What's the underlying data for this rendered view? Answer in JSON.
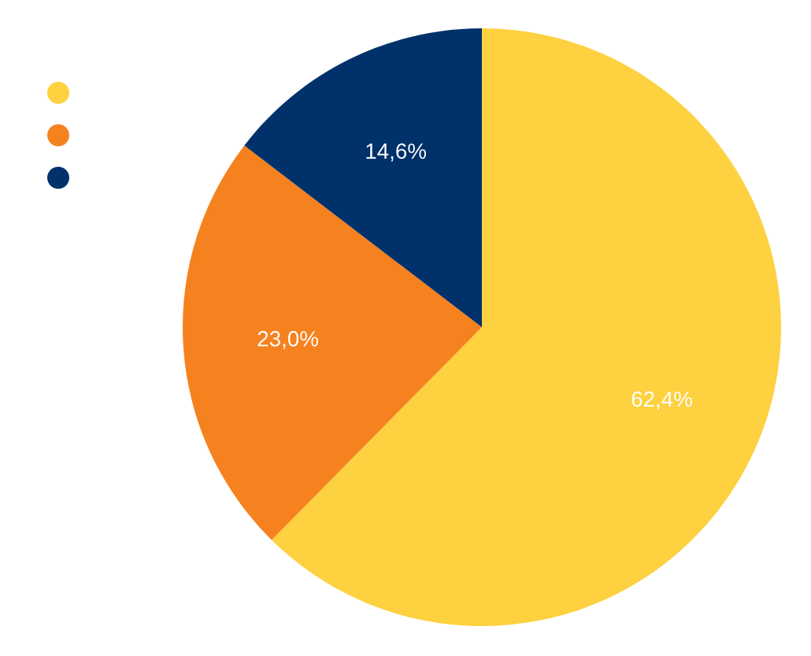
{
  "chart_data": {
    "type": "pie",
    "categories": [
      null,
      null,
      null
    ],
    "values": [
      62.4,
      23.0,
      14.6
    ],
    "colors": [
      "#fdd13f",
      "#f5821f",
      "#00316b"
    ],
    "value_labels": [
      "62,4%",
      "23,0%",
      "14,6%"
    ]
  }
}
